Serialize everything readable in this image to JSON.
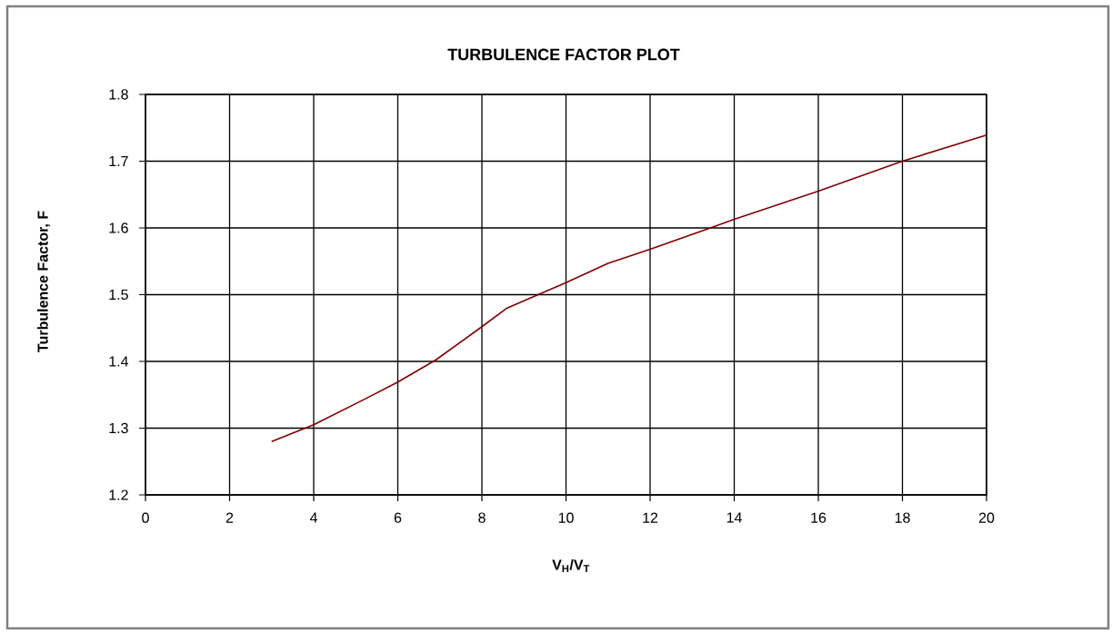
{
  "chart_data": {
    "type": "line",
    "title": "TURBULENCE FACTOR PLOT",
    "xlabel": "V$_{H}$/V$_{T}$",
    "ylabel": "Turbulence Factor, F",
    "x": [
      3,
      4,
      5.2,
      6,
      6.9,
      8,
      8.6,
      10,
      11,
      12,
      13.3,
      14,
      16,
      18,
      20
    ],
    "series": [
      {
        "color": "#800000",
        "values": [
          1.28,
          1.305,
          1.343,
          1.369,
          1.402,
          1.452,
          1.48,
          1.518,
          1.547,
          1.568,
          1.597,
          1.613,
          1.655,
          1.7,
          1.739
        ]
      }
    ],
    "xlim": [
      0,
      20
    ],
    "ylim": [
      1.2,
      1.8
    ],
    "xticks": [
      0,
      2,
      4,
      6,
      8,
      10,
      12,
      14,
      16,
      18,
      20
    ],
    "yticks": [
      1.2,
      1.3,
      1.4,
      1.5,
      1.6,
      1.7,
      1.8
    ],
    "grid": true
  }
}
